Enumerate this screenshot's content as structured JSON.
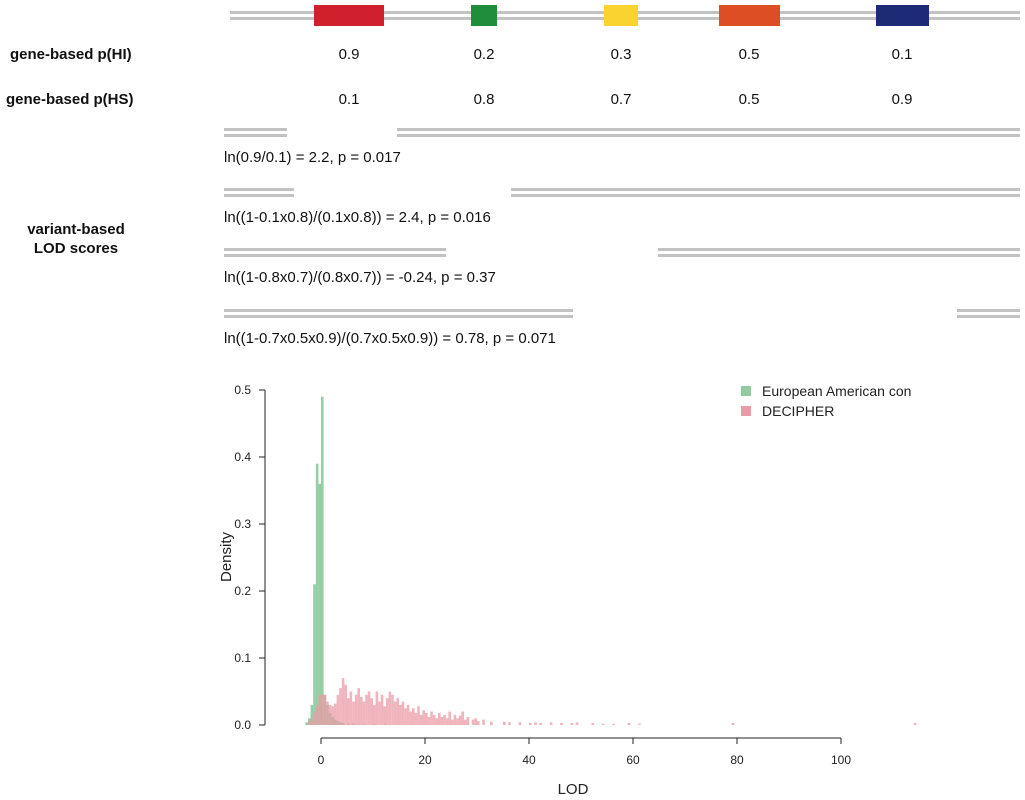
{
  "genes": {
    "colors": [
      "#d0202e",
      "#1f8e3a",
      "#fbd331",
      "#dd4e25",
      "#1d2b77"
    ]
  },
  "gene_hi": {
    "label": "gene-based p(HI)",
    "values": [
      "0.9",
      "0.2",
      "0.3",
      "0.5",
      "0.1"
    ]
  },
  "gene_hs": {
    "label": "gene-based p(HS)",
    "values": [
      "0.1",
      "0.8",
      "0.7",
      "0.5",
      "0.9"
    ]
  },
  "variant": {
    "label_line1": "variant-based",
    "label_line2": "LOD scores",
    "formulas": [
      "ln(0.9/0.1) = 2.2, p = 0.017",
      "ln((1-0.1x0.8)/(0.1x0.8)) = 2.4, p = 0.016",
      "ln((1-0.8x0.7)/(0.8x0.7)) = -0.24, p = 0.37",
      "ln((1-0.7x0.5x0.9)/(0.7x0.5x0.9)) = 0.78, p = 0.071"
    ]
  },
  "chart_data": {
    "type": "histogram",
    "xlabel": "LOD",
    "ylabel": "Density",
    "xlim": [
      -3,
      115
    ],
    "ylim": [
      0,
      0.5
    ],
    "xticks": [
      "0",
      "20",
      "40",
      "60",
      "80",
      "100"
    ],
    "yticks": [
      "0.0",
      "0.1",
      "0.2",
      "0.3",
      "0.4",
      "0.5"
    ],
    "legend_position": "top-right",
    "series": [
      {
        "name": "European American con",
        "color": "#8fcaa0",
        "bin_width": 0.5,
        "bins": [
          {
            "x": -3.0,
            "y": 0.004
          },
          {
            "x": -2.5,
            "y": 0.01
          },
          {
            "x": -2.0,
            "y": 0.03
          },
          {
            "x": -1.5,
            "y": 0.21
          },
          {
            "x": -1.0,
            "y": 0.39
          },
          {
            "x": -0.5,
            "y": 0.36
          },
          {
            "x": 0.0,
            "y": 0.49
          },
          {
            "x": 0.5,
            "y": 0.045
          },
          {
            "x": 1.0,
            "y": 0.03
          },
          {
            "x": 1.5,
            "y": 0.018
          },
          {
            "x": 2.0,
            "y": 0.012
          },
          {
            "x": 2.5,
            "y": 0.008
          },
          {
            "x": 3.0,
            "y": 0.006
          },
          {
            "x": 3.5,
            "y": 0.004
          },
          {
            "x": 4.0,
            "y": 0.003
          },
          {
            "x": 5.0,
            "y": 0.002
          },
          {
            "x": 6.0,
            "y": 0.002
          },
          {
            "x": 8.0,
            "y": 0.001
          },
          {
            "x": 10.0,
            "y": 0.001
          },
          {
            "x": 12.0,
            "y": 0.001
          }
        ]
      },
      {
        "name": "DECIPHER",
        "color": "#eb9ba6",
        "bin_width": 0.5,
        "bins": [
          {
            "x": -2.5,
            "y": 0.005
          },
          {
            "x": -2.0,
            "y": 0.01
          },
          {
            "x": -1.5,
            "y": 0.02
          },
          {
            "x": -1.0,
            "y": 0.03
          },
          {
            "x": -0.5,
            "y": 0.045
          },
          {
            "x": 0.0,
            "y": 0.045
          },
          {
            "x": 0.5,
            "y": 0.045
          },
          {
            "x": 1.0,
            "y": 0.035
          },
          {
            "x": 1.5,
            "y": 0.03
          },
          {
            "x": 2.0,
            "y": 0.028
          },
          {
            "x": 2.5,
            "y": 0.032
          },
          {
            "x": 3.0,
            "y": 0.045
          },
          {
            "x": 3.5,
            "y": 0.055
          },
          {
            "x": 4.0,
            "y": 0.07
          },
          {
            "x": 4.5,
            "y": 0.06
          },
          {
            "x": 5.0,
            "y": 0.04
          },
          {
            "x": 5.5,
            "y": 0.05
          },
          {
            "x": 6.0,
            "y": 0.035
          },
          {
            "x": 6.5,
            "y": 0.045
          },
          {
            "x": 7.0,
            "y": 0.055
          },
          {
            "x": 7.5,
            "y": 0.042
          },
          {
            "x": 8.0,
            "y": 0.035
          },
          {
            "x": 8.5,
            "y": 0.045
          },
          {
            "x": 9.0,
            "y": 0.05
          },
          {
            "x": 9.5,
            "y": 0.04
          },
          {
            "x": 10.0,
            "y": 0.03
          },
          {
            "x": 10.5,
            "y": 0.05
          },
          {
            "x": 11.0,
            "y": 0.035
          },
          {
            "x": 11.5,
            "y": 0.045
          },
          {
            "x": 12.0,
            "y": 0.028
          },
          {
            "x": 12.5,
            "y": 0.04
          },
          {
            "x": 13.0,
            "y": 0.05
          },
          {
            "x": 13.5,
            "y": 0.045
          },
          {
            "x": 14.0,
            "y": 0.035
          },
          {
            "x": 14.5,
            "y": 0.04
          },
          {
            "x": 15.0,
            "y": 0.03
          },
          {
            "x": 15.5,
            "y": 0.035
          },
          {
            "x": 16.0,
            "y": 0.025
          },
          {
            "x": 16.5,
            "y": 0.03
          },
          {
            "x": 17.0,
            "y": 0.02
          },
          {
            "x": 17.5,
            "y": 0.025
          },
          {
            "x": 18.0,
            "y": 0.018
          },
          {
            "x": 18.5,
            "y": 0.028
          },
          {
            "x": 19.0,
            "y": 0.015
          },
          {
            "x": 19.5,
            "y": 0.022
          },
          {
            "x": 20.0,
            "y": 0.018
          },
          {
            "x": 20.5,
            "y": 0.012
          },
          {
            "x": 21.0,
            "y": 0.02
          },
          {
            "x": 21.5,
            "y": 0.015
          },
          {
            "x": 22.0,
            "y": 0.01
          },
          {
            "x": 22.5,
            "y": 0.018
          },
          {
            "x": 23.0,
            "y": 0.012
          },
          {
            "x": 23.5,
            "y": 0.015
          },
          {
            "x": 24.0,
            "y": 0.01
          },
          {
            "x": 24.5,
            "y": 0.02
          },
          {
            "x": 25.0,
            "y": 0.008
          },
          {
            "x": 25.5,
            "y": 0.015
          },
          {
            "x": 26.0,
            "y": 0.01
          },
          {
            "x": 26.5,
            "y": 0.014
          },
          {
            "x": 27.0,
            "y": 0.02
          },
          {
            "x": 27.5,
            "y": 0.008
          },
          {
            "x": 28.0,
            "y": 0.012
          },
          {
            "x": 29.0,
            "y": 0.008
          },
          {
            "x": 29.5,
            "y": 0.01
          },
          {
            "x": 30.0,
            "y": 0.006
          },
          {
            "x": 31.0,
            "y": 0.008
          },
          {
            "x": 32.5,
            "y": 0.005
          },
          {
            "x": 35.0,
            "y": 0.005
          },
          {
            "x": 36.0,
            "y": 0.004
          },
          {
            "x": 38.0,
            "y": 0.004
          },
          {
            "x": 40.0,
            "y": 0.003
          },
          {
            "x": 41.0,
            "y": 0.004
          },
          {
            "x": 42.0,
            "y": 0.003
          },
          {
            "x": 44.0,
            "y": 0.004
          },
          {
            "x": 46.0,
            "y": 0.003
          },
          {
            "x": 48.0,
            "y": 0.003
          },
          {
            "x": 49.0,
            "y": 0.004
          },
          {
            "x": 52.0,
            "y": 0.003
          },
          {
            "x": 54.0,
            "y": 0.002
          },
          {
            "x": 56.0,
            "y": 0.002
          },
          {
            "x": 59.0,
            "y": 0.003
          },
          {
            "x": 61.0,
            "y": 0.002
          },
          {
            "x": 79.0,
            "y": 0.003
          },
          {
            "x": 114.0,
            "y": 0.003
          }
        ]
      }
    ]
  }
}
